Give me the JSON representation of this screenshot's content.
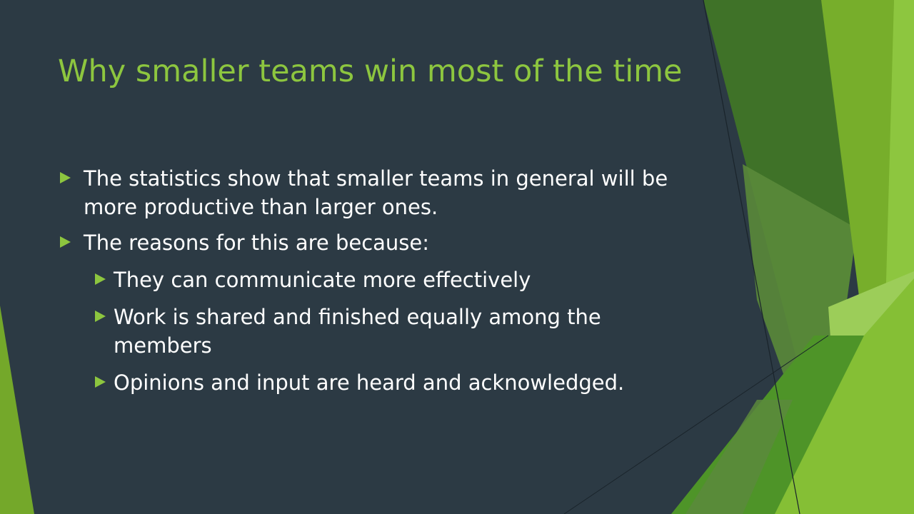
{
  "slide": {
    "title": "Why smaller teams win most of the time",
    "bullets": [
      {
        "text": "The statistics show that smaller teams in general will be more productive than larger ones."
      },
      {
        "text": "The reasons for this are because:"
      }
    ],
    "sub_bullets": [
      {
        "text": "They can communicate more effectively"
      },
      {
        "text": "Work is shared and finished equally among the members"
      },
      {
        "text": "Opinions and input are heard and acknowledged."
      }
    ]
  },
  "theme": {
    "background": "#2c3a44",
    "accent": "#8dc63f",
    "text_color": "#ffffff",
    "bullet_icon": "triangle-right-icon"
  }
}
